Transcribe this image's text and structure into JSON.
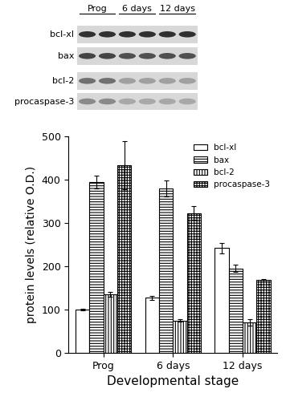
{
  "blot": {
    "rows": [
      "bcl-xl",
      "bax",
      "bcl-2",
      "procaspase-3"
    ],
    "columns": [
      "Prog",
      "6 days",
      "12 days"
    ]
  },
  "chart_data": {
    "type": "bar",
    "x_label": "Developmental stage",
    "y_label": "protein levels (relative O.D.)",
    "categories": [
      "Prog",
      "6 days",
      "12 days"
    ],
    "series": [
      {
        "name": "bcl-xl",
        "color": "#ffffff",
        "values": [
          100,
          127,
          242
        ],
        "errors": [
          2,
          5,
          12
        ]
      },
      {
        "name": "bax",
        "color": "#ffffff",
        "values": [
          395,
          380,
          195
        ],
        "errors": [
          15,
          18,
          8
        ]
      },
      {
        "name": "bcl-2",
        "color": "#ffffff",
        "values": [
          135,
          75,
          70
        ],
        "errors": [
          5,
          3,
          7
        ]
      },
      {
        "name": "procaspase-3",
        "color": "#ffffff",
        "values": [
          433,
          323,
          168
        ],
        "errors": [
          55,
          15,
          3
        ]
      }
    ],
    "ylim": [
      0,
      500
    ],
    "yticks": [
      0,
      100,
      200,
      300,
      400,
      500
    ],
    "grid": false,
    "legend": "upper right"
  }
}
